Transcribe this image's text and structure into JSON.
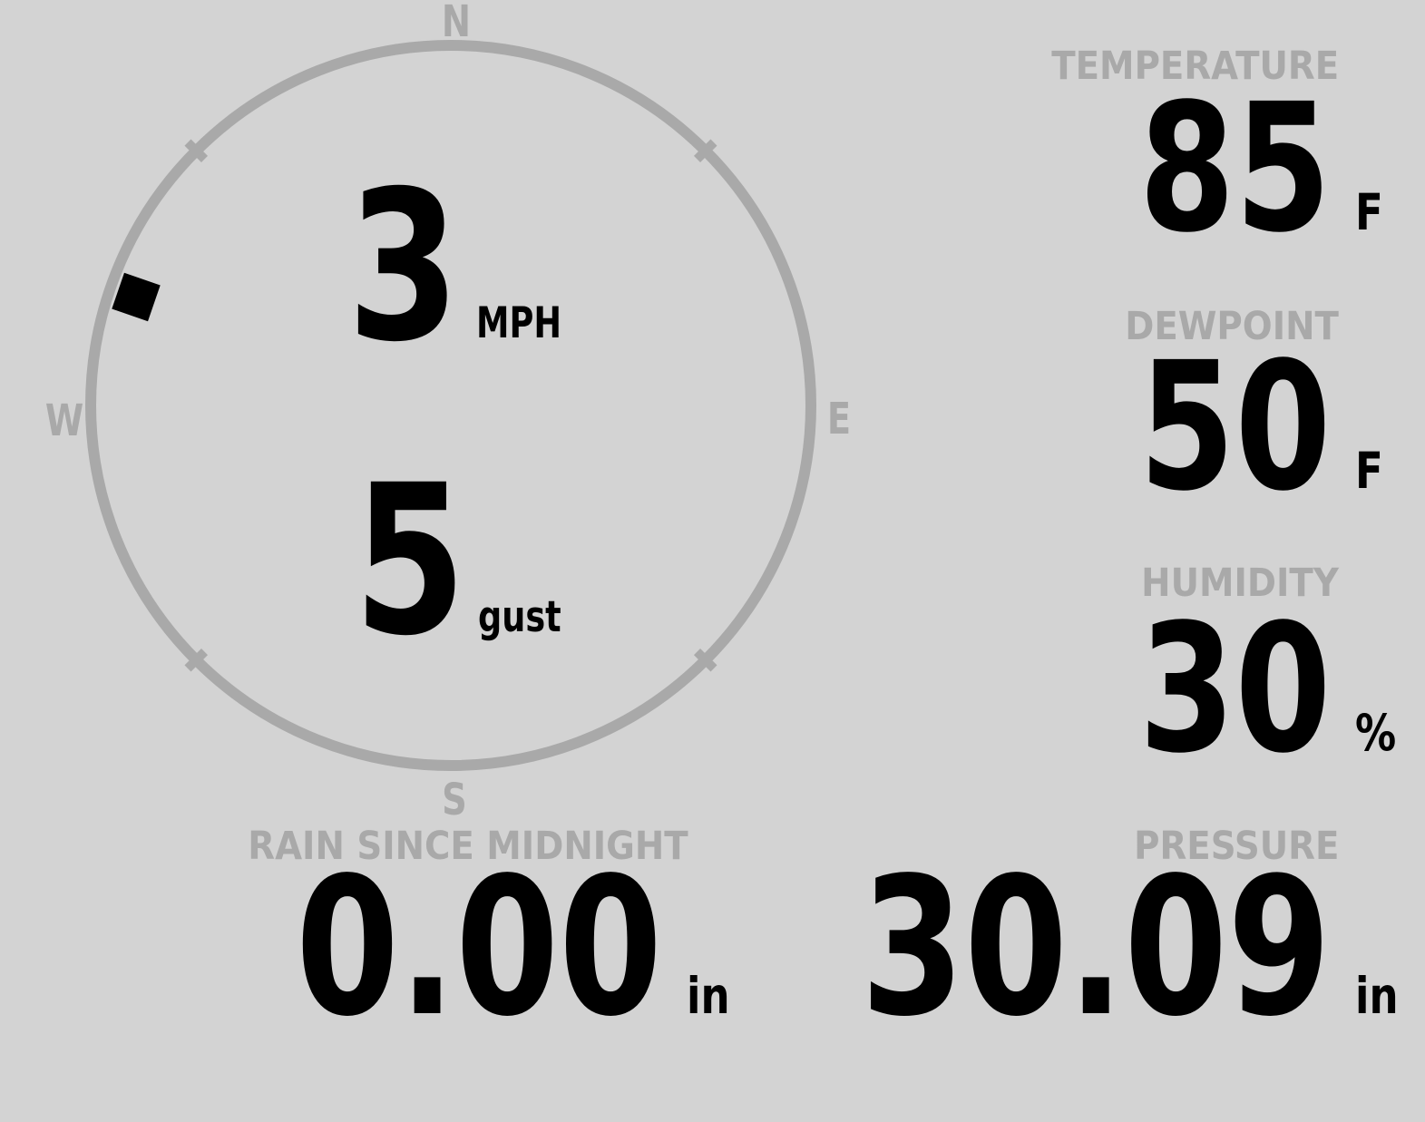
{
  "theme": {
    "background": "#d3d3d3",
    "muted": "#a9a9a9",
    "foreground": "#000000"
  },
  "wind": {
    "direction_degrees": 289,
    "compass": {
      "north": "N",
      "east": "E",
      "south": "S",
      "west": "W"
    },
    "speed": {
      "value": "3",
      "unit": "MPH"
    },
    "gust": {
      "value": "5",
      "unit": "gust"
    }
  },
  "metrics": {
    "temperature": {
      "label": "TEMPERATURE",
      "value": "85",
      "unit": "F"
    },
    "dewpoint": {
      "label": "DEWPOINT",
      "value": "50",
      "unit": "F"
    },
    "humidity": {
      "label": "HUMIDITY",
      "value": "30",
      "unit": "%"
    },
    "rain": {
      "label": "RAIN SINCE MIDNIGHT",
      "value": "0.00",
      "unit": "in"
    },
    "pressure": {
      "label": "PRESSURE",
      "value": "30.09",
      "unit": "in"
    }
  }
}
